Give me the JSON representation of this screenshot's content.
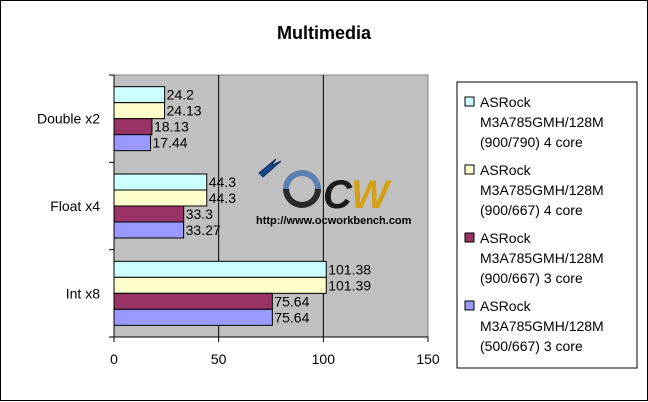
{
  "chart_data": {
    "type": "bar",
    "orientation": "horizontal",
    "title": "Multimedia",
    "categories": [
      "Int x8",
      "Float x4",
      "Double x2"
    ],
    "series": [
      {
        "name": "ASRock M3A785GMH/128M (500/667) 3 core",
        "legend_lines": [
          "ASRock",
          "M3A785GMH/128M",
          "(500/667) 3 core"
        ],
        "color": "#9999ff",
        "values": [
          75.64,
          33.27,
          17.44
        ]
      },
      {
        "name": "ASRock M3A785GMH/128M (900/667) 3 core",
        "legend_lines": [
          "ASRock",
          "M3A785GMH/128M",
          "(900/667) 3 core"
        ],
        "color": "#993366",
        "values": [
          75.64,
          33.3,
          18.13
        ]
      },
      {
        "name": "ASRock M3A785GMH/128M (900/667) 4 core",
        "legend_lines": [
          "ASRock",
          "M3A785GMH/128M",
          "(900/667) 4 core"
        ],
        "color": "#ffffcc",
        "values": [
          101.39,
          44.3,
          24.13
        ]
      },
      {
        "name": "ASRock M3A785GMH/128M (900/790) 4 core",
        "legend_lines": [
          "ASRock",
          "M3A785GMH/128M",
          "(900/790) 4 core"
        ],
        "color": "#ccffff",
        "values": [
          101.38,
          44.3,
          24.2
        ]
      }
    ],
    "value_labels": {
      "Int x8": [
        "101.38",
        "101.39",
        "75.64",
        "75.64"
      ],
      "Float x4": [
        "44.3",
        "44.3",
        "33.3",
        "33.27"
      ],
      "Double x2": [
        "24.2",
        "24.13",
        "18.13",
        "17.44"
      ]
    },
    "xlim": [
      0,
      150
    ],
    "xticks": [
      0,
      50,
      100,
      150
    ],
    "grid": true,
    "plot_background": "#c0c0c0",
    "legend_position": "right",
    "watermark": {
      "logo": "OCW",
      "url": "http://www.ocworkbench.com"
    }
  }
}
